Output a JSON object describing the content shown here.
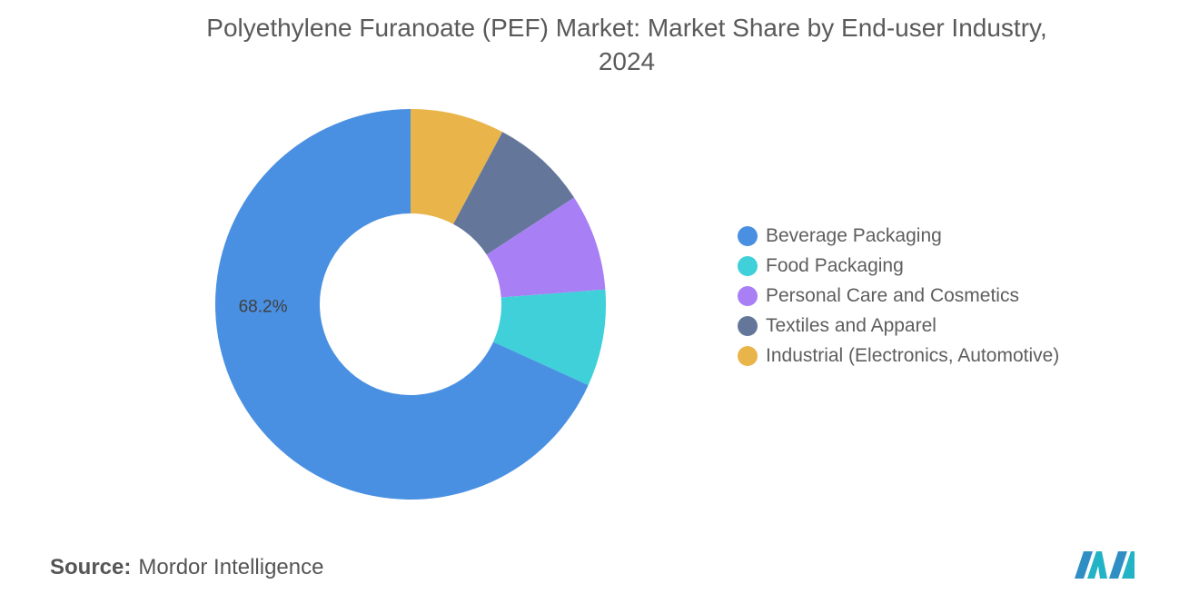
{
  "title_line1": "Polyethylene Furanoate (PEF) Market: Market Share by End-user Industry,",
  "title_line2": "2024",
  "source_label": "Source:",
  "source_value": "Mordor Intelligence",
  "logo_icon": "mordor-intelligence-logo-icon",
  "chart_data": {
    "type": "pie",
    "variant": "donut",
    "title": "Polyethylene Furanoate (PEF) Market: Market Share by End-user Industry, 2024",
    "unit": "%",
    "legend_position": "right",
    "categories": [
      "Beverage Packaging",
      "Food Packaging",
      "Personal Care and Cosmetics",
      "Textiles and Apparel",
      "Industrial (Electronics, Automotive)"
    ],
    "values": [
      68.2,
      8.0,
      8.0,
      8.0,
      7.8
    ],
    "colors": [
      "#4a90e2",
      "#3fd0d9",
      "#a97ff5",
      "#64779b",
      "#e9b54a"
    ],
    "data_labels": [
      {
        "category": "Beverage Packaging",
        "text": "68.2%"
      }
    ]
  }
}
